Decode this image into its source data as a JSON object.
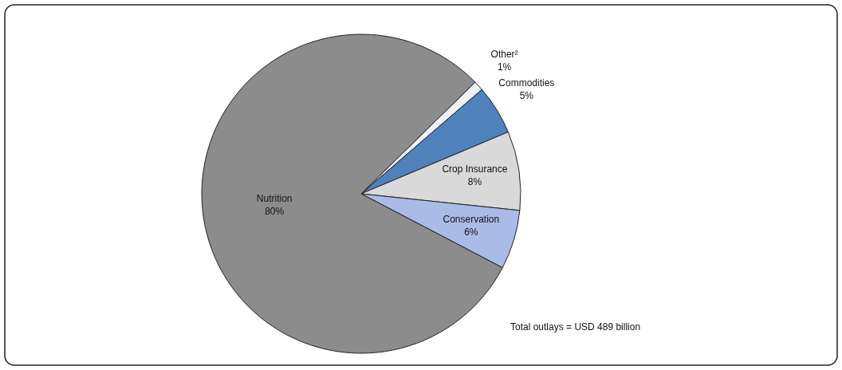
{
  "chart_data": {
    "type": "pie",
    "categories": [
      "Other²",
      "Commodities",
      "Crop Insurance",
      "Conservation",
      "Nutrition"
    ],
    "values": [
      1,
      5,
      8,
      6,
      80
    ],
    "colors": [
      "#eef2f8",
      "#4f81bd",
      "#d9d9d9",
      "#a9bbe6",
      "#8c8c8c"
    ],
    "value_labels": [
      "1%",
      "5%",
      "8%",
      "6%",
      "80%"
    ],
    "annotations": [
      "Total outlays = USD 489 billion"
    ]
  }
}
